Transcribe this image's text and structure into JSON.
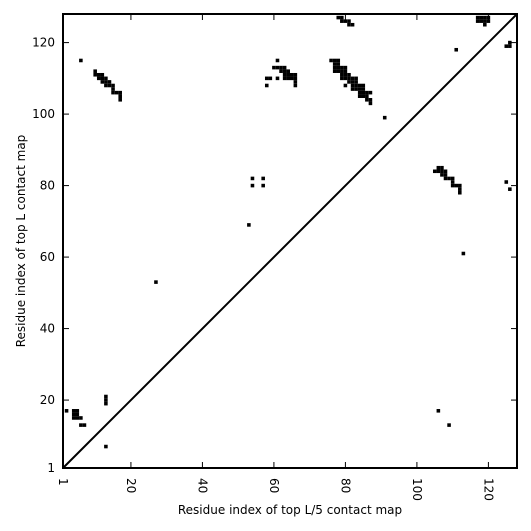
{
  "chart_data": {
    "type": "heatmap",
    "xlabel": "Residue index of top L/5 contact map",
    "ylabel": "Residue index of top L contact map",
    "xlim": [
      1,
      128
    ],
    "ylim": [
      1,
      128
    ],
    "x_ticks": [
      1,
      20,
      40,
      60,
      80,
      100,
      120
    ],
    "y_ticks": [
      1,
      20,
      40,
      60,
      80,
      100,
      120
    ],
    "diagonal": true,
    "grid": false,
    "cell_color": "#000000",
    "upper_triangle_contacts": [
      [
        6,
        115
      ],
      [
        10,
        112
      ],
      [
        10,
        111
      ],
      [
        11,
        111
      ],
      [
        12,
        111
      ],
      [
        11,
        110
      ],
      [
        12,
        110
      ],
      [
        13,
        110
      ],
      [
        12,
        109
      ],
      [
        13,
        109
      ],
      [
        14,
        109
      ],
      [
        13,
        108
      ],
      [
        14,
        108
      ],
      [
        15,
        108
      ],
      [
        15,
        107
      ],
      [
        15,
        106
      ],
      [
        16,
        106
      ],
      [
        17,
        106
      ],
      [
        17,
        105
      ],
      [
        17,
        104
      ],
      [
        58,
        108
      ],
      [
        58,
        110
      ],
      [
        59,
        110
      ],
      [
        61,
        110
      ],
      [
        61,
        115
      ],
      [
        60,
        113
      ],
      [
        61,
        113
      ],
      [
        62,
        113
      ],
      [
        63,
        113
      ],
      [
        62,
        112
      ],
      [
        63,
        112
      ],
      [
        64,
        112
      ],
      [
        63,
        111
      ],
      [
        64,
        111
      ],
      [
        65,
        111
      ],
      [
        66,
        111
      ],
      [
        63,
        110
      ],
      [
        64,
        110
      ],
      [
        65,
        110
      ],
      [
        66,
        110
      ],
      [
        66,
        109
      ],
      [
        66,
        108
      ],
      [
        78,
        127
      ],
      [
        79,
        127
      ],
      [
        79,
        126
      ],
      [
        80,
        126
      ],
      [
        81,
        126
      ],
      [
        81,
        125
      ],
      [
        82,
        125
      ],
      [
        76,
        115
      ],
      [
        77,
        115
      ],
      [
        78,
        115
      ],
      [
        77,
        114
      ],
      [
        78,
        114
      ],
      [
        77,
        113
      ],
      [
        78,
        113
      ],
      [
        79,
        113
      ],
      [
        80,
        113
      ],
      [
        77,
        112
      ],
      [
        78,
        112
      ],
      [
        79,
        112
      ],
      [
        80,
        112
      ],
      [
        79,
        111
      ],
      [
        80,
        111
      ],
      [
        81,
        111
      ],
      [
        79,
        110
      ],
      [
        80,
        110
      ],
      [
        81,
        110
      ],
      [
        82,
        110
      ],
      [
        83,
        110
      ],
      [
        81,
        109
      ],
      [
        82,
        109
      ],
      [
        83,
        109
      ],
      [
        80,
        108
      ],
      [
        82,
        108
      ],
      [
        83,
        108
      ],
      [
        84,
        108
      ],
      [
        85,
        108
      ],
      [
        82,
        107
      ],
      [
        83,
        107
      ],
      [
        84,
        107
      ],
      [
        85,
        107
      ],
      [
        86,
        106
      ],
      [
        87,
        106
      ],
      [
        84,
        106
      ],
      [
        85,
        106
      ],
      [
        84,
        105
      ],
      [
        85,
        105
      ],
      [
        86,
        105
      ],
      [
        86,
        104
      ],
      [
        87,
        104
      ],
      [
        87,
        103
      ],
      [
        91,
        99
      ],
      [
        111,
        118
      ],
      [
        117,
        127
      ],
      [
        118,
        127
      ],
      [
        119,
        127
      ],
      [
        120,
        127
      ],
      [
        117,
        126
      ],
      [
        118,
        126
      ],
      [
        119,
        126
      ],
      [
        120,
        126
      ],
      [
        119,
        125
      ],
      [
        125,
        119
      ],
      [
        126,
        119
      ],
      [
        126,
        120
      ],
      [
        106,
        85
      ],
      [
        107,
        85
      ],
      [
        105,
        84
      ],
      [
        106,
        84
      ],
      [
        107,
        84
      ],
      [
        108,
        84
      ],
      [
        107,
        83
      ],
      [
        108,
        83
      ],
      [
        108,
        82
      ],
      [
        109,
        82
      ],
      [
        110,
        82
      ],
      [
        110,
        81
      ],
      [
        110,
        80
      ],
      [
        111,
        80
      ],
      [
        112,
        80
      ],
      [
        112,
        79
      ],
      [
        112,
        78
      ],
      [
        125,
        81
      ],
      [
        126,
        79
      ]
    ],
    "lower_triangle_contacts": [
      [
        6,
        13
      ],
      [
        7,
        13
      ],
      [
        2,
        17
      ],
      [
        4,
        17
      ],
      [
        5,
        17
      ],
      [
        4,
        16
      ],
      [
        5,
        16
      ],
      [
        4,
        15
      ],
      [
        5,
        15
      ],
      [
        6,
        15
      ],
      [
        13,
        21
      ],
      [
        13,
        20
      ],
      [
        13,
        19
      ],
      [
        13,
        7
      ],
      [
        27,
        53
      ],
      [
        53,
        69
      ],
      [
        54,
        82
      ],
      [
        57,
        82
      ],
      [
        54,
        80
      ],
      [
        57,
        80
      ],
      [
        113,
        61
      ],
      [
        106,
        17
      ],
      [
        109,
        13
      ]
    ]
  }
}
